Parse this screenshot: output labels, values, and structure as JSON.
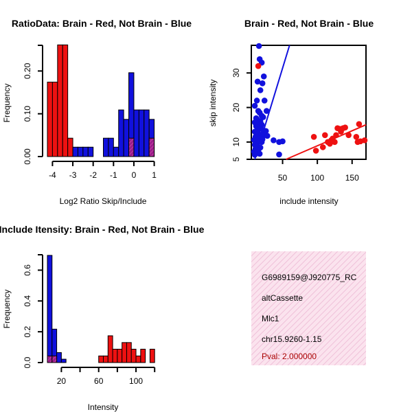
{
  "colors": {
    "red": "#ee1111",
    "blue": "#1111dd",
    "overlap": "#aa2288",
    "stripe": "#f0c8dc",
    "pval": "#aa0000"
  },
  "chart_data": [
    {
      "type": "bar",
      "name": "ratio-histogram",
      "title": "RatioData: Brain - Red, Not Brain - Blue",
      "xlabel": "Log2 Ratio Skip/Include",
      "ylabel": "Frequency",
      "xlim": [
        -4.25,
        1.25
      ],
      "ylim": [
        0,
        0.26
      ],
      "xticks": [
        -4,
        -3,
        -2,
        -1,
        0,
        1
      ],
      "yticks": [
        0.0,
        0.1,
        0.2
      ],
      "ytick_labels": [
        "0.00",
        "0.10",
        "0.20"
      ],
      "bin_width": 0.25,
      "series": [
        {
          "name": "Brain",
          "color": "red",
          "bins": [
            [
              -4.25,
              0.174
            ],
            [
              -4.0,
              0.174
            ],
            [
              -3.75,
              0.261
            ],
            [
              -3.5,
              0.261
            ],
            [
              -3.25,
              0.043
            ]
          ]
        },
        {
          "name": "Not Brain",
          "color": "blue",
          "bins": [
            [
              -3.0,
              0.022
            ],
            [
              -2.75,
              0.022
            ],
            [
              -2.5,
              0.022
            ],
            [
              -2.25,
              0.022
            ],
            [
              -1.5,
              0.043
            ],
            [
              -1.25,
              0.043
            ],
            [
              -1.0,
              0.022
            ],
            [
              -0.75,
              0.109
            ],
            [
              -0.5,
              0.087
            ],
            [
              -0.25,
              0.196
            ],
            [
              0.0,
              0.109
            ],
            [
              0.25,
              0.109
            ],
            [
              0.5,
              0.109
            ],
            [
              0.75,
              0.087
            ]
          ]
        },
        {
          "name": "Overlap",
          "color": "overlap",
          "bins": [
            [
              -0.25,
              0.043
            ],
            [
              0.75,
              0.043
            ]
          ]
        }
      ]
    },
    {
      "type": "scatter",
      "name": "intensity-scatter",
      "title": "Brain - Red, Not Brain - Blue",
      "xlabel": "include intensity",
      "ylabel": "skip intensity",
      "xlim": [
        5,
        170
      ],
      "ylim": [
        5,
        38
      ],
      "xticks": [
        50,
        100,
        150
      ],
      "yticks": [
        5,
        10,
        20,
        30
      ],
      "series": [
        {
          "name": "Not Brain",
          "color": "blue",
          "points": [
            [
              16,
              37.8
            ],
            [
              17,
              34
            ],
            [
              20,
              33
            ],
            [
              23,
              29
            ],
            [
              14,
              27.5
            ],
            [
              21,
              27
            ],
            [
              18,
              25
            ],
            [
              13,
              22
            ],
            [
              24,
              22
            ],
            [
              27,
              19
            ],
            [
              10,
              20.5
            ],
            [
              15,
              19
            ],
            [
              17,
              18.5
            ],
            [
              20,
              17.6
            ],
            [
              22,
              17.2
            ],
            [
              12,
              16.9
            ],
            [
              14,
              16.4
            ],
            [
              18,
              16
            ],
            [
              10,
              15.7
            ],
            [
              16,
              15.2
            ],
            [
              20,
              15
            ],
            [
              12,
              14.6
            ],
            [
              14,
              14.2
            ],
            [
              17,
              13.8
            ],
            [
              22,
              13.5
            ],
            [
              26,
              13.2
            ],
            [
              10,
              13
            ],
            [
              12,
              12.7
            ],
            [
              15,
              12.4
            ],
            [
              19,
              12.1
            ],
            [
              24,
              12
            ],
            [
              28,
              11.8
            ],
            [
              11,
              11.5
            ],
            [
              14,
              11.2
            ],
            [
              17,
              11
            ],
            [
              21,
              10.8
            ],
            [
              9,
              10.6
            ],
            [
              12,
              10.4
            ],
            [
              16,
              10.2
            ],
            [
              20,
              10
            ],
            [
              13,
              9.6
            ],
            [
              10,
              9.2
            ],
            [
              14,
              8.8
            ],
            [
              18,
              8.4
            ],
            [
              11,
              8
            ],
            [
              15,
              7.6
            ],
            [
              9,
              7.2
            ],
            [
              13,
              6.9
            ],
            [
              17,
              6.6
            ],
            [
              10,
              6.3
            ],
            [
              37,
              10.5
            ],
            [
              45,
              10
            ],
            [
              50,
              10.2
            ],
            [
              45,
              6.4
            ]
          ]
        },
        {
          "name": "Brain",
          "color": "red",
          "points": [
            [
              15,
              32
            ],
            [
              95,
              11.5
            ],
            [
              98,
              7.5
            ],
            [
              108,
              8.5
            ],
            [
              111,
              12
            ],
            [
              115,
              10
            ],
            [
              118,
              9.5
            ],
            [
              120,
              10.5
            ],
            [
              122,
              11
            ],
            [
              125,
              10
            ],
            [
              127,
              12
            ],
            [
              129,
              14
            ],
            [
              132,
              13.8
            ],
            [
              134,
              13
            ],
            [
              137,
              14
            ],
            [
              140,
              14.2
            ],
            [
              145,
              12
            ],
            [
              156,
              11.5
            ],
            [
              160,
              15.2
            ],
            [
              158,
              10
            ],
            [
              162,
              10.2
            ],
            [
              168,
              10.5
            ]
          ]
        }
      ],
      "fit_lines": [
        {
          "name": "Not Brain fit",
          "color": "blue",
          "from": [
            10,
            5
          ],
          "to": [
            60,
            38
          ]
        },
        {
          "name": "Brain fit",
          "color": "red",
          "from": [
            55,
            5
          ],
          "to": [
            170,
            15
          ]
        }
      ]
    },
    {
      "type": "bar",
      "name": "intensity-histogram",
      "title": "Include Itensity: Brain - Red, Not Brain - Blue",
      "xlabel": "Intensity",
      "ylabel": "Frequency",
      "xlim": [
        5,
        125
      ],
      "ylim": [
        0,
        0.7
      ],
      "xticks": [
        20,
        40,
        60,
        80,
        100,
        120
      ],
      "xtick_labels": [
        "20",
        "",
        "60",
        "",
        "100",
        ""
      ],
      "yticks": [
        0.0,
        0.2,
        0.4,
        0.6
      ],
      "ytick_labels": [
        "0.0",
        "0.2",
        "0.4",
        "0.6"
      ],
      "bin_width": 5,
      "series": [
        {
          "name": "Not Brain",
          "color": "blue",
          "bins": [
            [
              5,
              0.696
            ],
            [
              10,
              0.217
            ],
            [
              15,
              0.065
            ],
            [
              20,
              0.022
            ]
          ]
        },
        {
          "name": "Brain",
          "color": "red",
          "bins": [
            [
              60,
              0.043
            ],
            [
              65,
              0.043
            ],
            [
              70,
              0.174
            ],
            [
              75,
              0.087
            ],
            [
              80,
              0.087
            ],
            [
              85,
              0.13
            ],
            [
              90,
              0.13
            ],
            [
              95,
              0.087
            ],
            [
              100,
              0.043
            ],
            [
              105,
              0.087
            ],
            [
              115,
              0.087
            ]
          ]
        },
        {
          "name": "Overlap",
          "color": "overlap",
          "bins": [
            [
              5,
              0.043
            ],
            [
              10,
              0.043
            ]
          ]
        }
      ]
    }
  ],
  "info": {
    "id": "G6989159@J920775_RC",
    "event_type": "altCassette",
    "gene": "Mlc1",
    "location": "chr15.9260-1.15",
    "pval": "Pval: 2.000000"
  }
}
